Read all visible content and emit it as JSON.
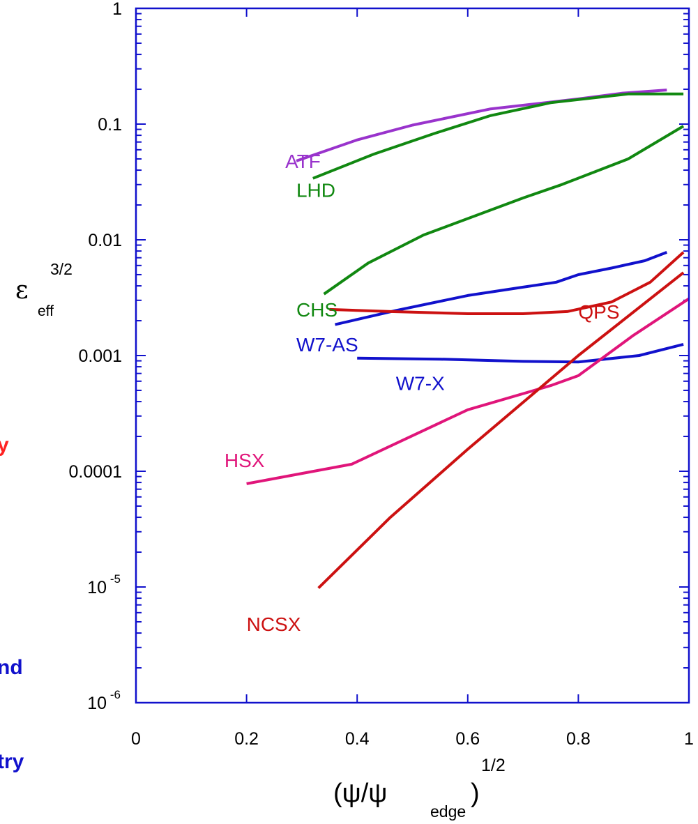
{
  "chart_data": {
    "type": "line",
    "xlabel": {
      "base": "(ψ/ψ",
      "sub": "edge",
      "close": ")",
      "sup": "1/2"
    },
    "ylabel": {
      "base": "ε",
      "sup": "3/2",
      "sub": "eff"
    },
    "xlim": [
      0,
      1
    ],
    "ylim": [
      1e-06,
      1
    ],
    "yscale": "log",
    "x_ticks": [
      {
        "value": 0,
        "label": "0"
      },
      {
        "value": 0.2,
        "label": "0.2"
      },
      {
        "value": 0.4,
        "label": "0.4"
      },
      {
        "value": 0.6,
        "label": "0.6"
      },
      {
        "value": 0.8,
        "label": "0.8"
      },
      {
        "value": 1,
        "label": "1"
      }
    ],
    "y_ticks": [
      {
        "value": 1,
        "label": "1"
      },
      {
        "value": 0.1,
        "label": "0.1"
      },
      {
        "value": 0.01,
        "label": "0.01"
      },
      {
        "value": 0.001,
        "label": "0.001"
      },
      {
        "value": 0.0001,
        "label": "0.0001"
      },
      {
        "value": 1e-05,
        "label": "10",
        "sup": "-5"
      },
      {
        "value": 1e-06,
        "label": "10",
        "sup": "-6"
      }
    ],
    "grid": false,
    "series": [
      {
        "name": "ATF",
        "color": "#9933cc",
        "label_at": [
          0.27,
          0.048
        ],
        "x": [
          0.29,
          0.4,
          0.5,
          0.64,
          0.8,
          0.88,
          0.96
        ],
        "y": [
          0.048,
          0.073,
          0.098,
          0.135,
          0.165,
          0.185,
          0.197
        ]
      },
      {
        "name": "LHD",
        "color": "#118811",
        "label_at": [
          0.29,
          0.027
        ],
        "x": [
          0.32,
          0.43,
          0.54,
          0.64,
          0.75,
          0.89,
          0.99
        ],
        "y": [
          0.034,
          0.055,
          0.083,
          0.118,
          0.153,
          0.182,
          0.182
        ]
      },
      {
        "name": "CHS",
        "color": "#118811",
        "label_at": [
          0.29,
          0.0025
        ],
        "x": [
          0.34,
          0.42,
          0.52,
          0.7,
          0.77,
          0.89,
          0.99
        ],
        "y": [
          0.0034,
          0.0063,
          0.011,
          0.023,
          0.03,
          0.05,
          0.096
        ]
      },
      {
        "name": "W7-AS",
        "color": "#1111cc",
        "label_at": [
          0.29,
          0.00125
        ],
        "x": [
          0.36,
          0.47,
          0.6,
          0.7,
          0.76,
          0.8,
          0.86,
          0.92,
          0.96
        ],
        "y": [
          0.00185,
          0.00245,
          0.0033,
          0.0039,
          0.0043,
          0.005,
          0.0057,
          0.0066,
          0.0078
        ]
      },
      {
        "name": "W7-X",
        "color": "#1111cc",
        "label_at": [
          0.47,
          0.00058
        ],
        "x": [
          0.4,
          0.55,
          0.7,
          0.8,
          0.91,
          0.99
        ],
        "y": [
          0.00095,
          0.00093,
          0.00089,
          0.00088,
          0.001,
          0.00125
        ]
      },
      {
        "name": "QPS",
        "color": "#cc1111",
        "label_at": [
          0.8,
          0.0024
        ],
        "x": [
          0.35,
          0.46,
          0.6,
          0.7,
          0.78,
          0.86,
          0.93,
          0.99
        ],
        "y": [
          0.0025,
          0.0024,
          0.0023,
          0.0023,
          0.0024,
          0.0029,
          0.0043,
          0.0078
        ]
      },
      {
        "name": "HSX",
        "color": "#e0157a",
        "label_at": [
          0.16,
          0.000125
        ],
        "x": [
          0.2,
          0.39,
          0.6,
          0.75,
          0.8,
          0.9,
          1.0
        ],
        "y": [
          7.8e-05,
          0.000115,
          0.00034,
          0.00055,
          0.00067,
          0.0015,
          0.0031
        ]
      },
      {
        "name": "NCSX",
        "color": "#cc1111",
        "label_at": [
          0.2,
          4.8e-06
        ],
        "x": [
          0.33,
          0.46,
          0.6,
          0.8,
          0.99
        ],
        "y": [
          9.8e-06,
          4e-05,
          0.000155,
          0.001,
          0.0052
        ]
      }
    ]
  },
  "page": {
    "fragments": [
      {
        "text": "y",
        "color": "#ff2222"
      },
      {
        "text": "nd",
        "color": "#1111cc"
      },
      {
        "text": "try",
        "color": "#1111cc"
      }
    ]
  }
}
